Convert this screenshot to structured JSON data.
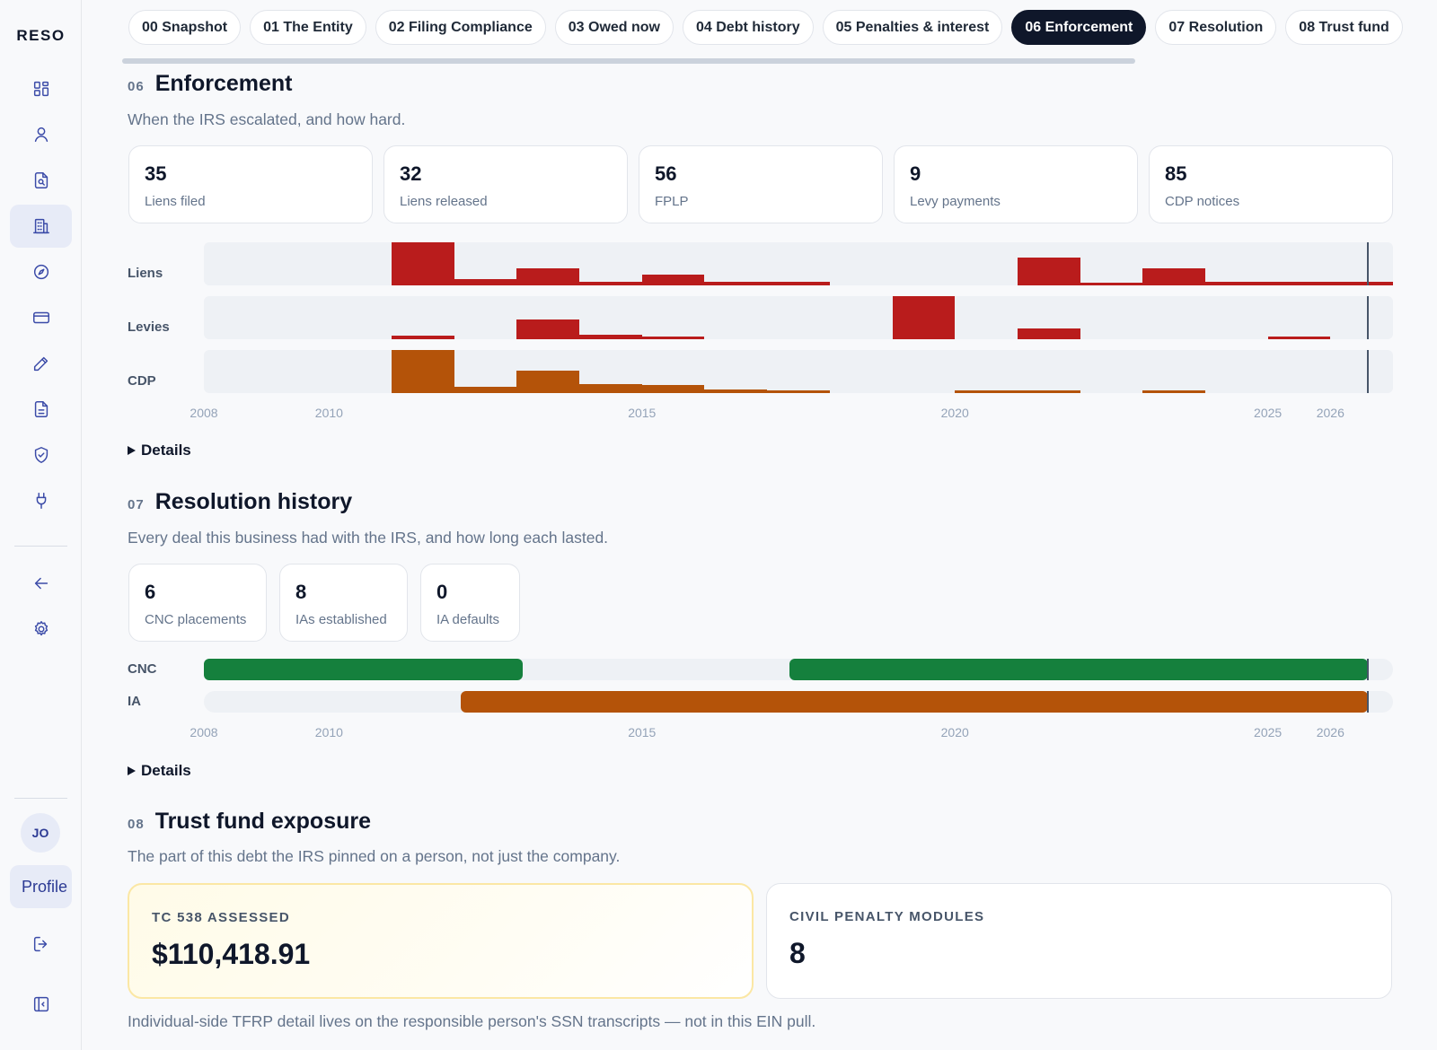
{
  "app": {
    "logo": "RESO"
  },
  "sidebar": {
    "items": [
      {
        "icon": "dashboard-icon"
      },
      {
        "icon": "user-icon"
      },
      {
        "icon": "document-search-icon"
      },
      {
        "icon": "building-icon",
        "active": true
      },
      {
        "icon": "compass-icon"
      },
      {
        "icon": "credit-card-icon"
      },
      {
        "icon": "pencil-icon"
      },
      {
        "icon": "file-text-icon"
      },
      {
        "icon": "shield-check-icon"
      },
      {
        "icon": "plug-icon"
      }
    ],
    "secondary": [
      {
        "icon": "arrow-left-icon"
      },
      {
        "icon": "settings-icon"
      }
    ],
    "avatar_initials": "JO",
    "profile_label": "Profile"
  },
  "tabs": [
    {
      "label": "00 Snapshot"
    },
    {
      "label": "01 The Entity"
    },
    {
      "label": "02 Filing Compliance"
    },
    {
      "label": "03 Owed now"
    },
    {
      "label": "04 Debt history"
    },
    {
      "label": "05 Penalties & interest"
    },
    {
      "label": "06 Enforcement",
      "active": true
    },
    {
      "label": "07 Resolution"
    },
    {
      "label": "08 Trust fund"
    }
  ],
  "enforcement": {
    "num": "06",
    "title": "Enforcement",
    "subtitle": "When the IRS escalated, and how hard.",
    "stats": [
      {
        "value": "35",
        "label": "Liens filed"
      },
      {
        "value": "32",
        "label": "Liens released"
      },
      {
        "value": "56",
        "label": "FPLP"
      },
      {
        "value": "9",
        "label": "Levy payments"
      },
      {
        "value": "85",
        "label": "CDP notices"
      }
    ],
    "details_label": "Details"
  },
  "resolution": {
    "num": "07",
    "title": "Resolution history",
    "subtitle": "Every deal this business had with the IRS, and how long each lasted.",
    "stats": [
      {
        "value": "6",
        "label": "CNC placements"
      },
      {
        "value": "8",
        "label": "IAs established"
      },
      {
        "value": "0",
        "label": "IA defaults"
      }
    ],
    "details_label": "Details"
  },
  "trust_fund": {
    "num": "08",
    "title": "Trust fund exposure",
    "subtitle": "The part of this debt the IRS pinned on a person, not just the company.",
    "cards": [
      {
        "label": "TC 538 ASSESSED",
        "value": "$110,418.91"
      },
      {
        "label": "CIVIL PENALTY MODULES",
        "value": "8"
      }
    ],
    "footnote": "Individual-side TFRP detail lives on the responsible person's SSN transcripts — not in this EIN pull."
  },
  "chart_data": [
    {
      "type": "bar",
      "title": "",
      "x_axis": {
        "min": 2008,
        "max": 2027,
        "ticks": [
          "2008",
          "2010",
          "2015",
          "2020",
          "2025",
          "2026"
        ]
      },
      "now_marker": 2026.6,
      "colors": {
        "Liens": "#b91c1c",
        "Levies": "#b91c1c",
        "CDP": "#b45309"
      },
      "series": [
        {
          "name": "Liens",
          "data": [
            [
              2011,
              1.0
            ],
            [
              2012,
              0.15
            ],
            [
              2013,
              0.4
            ],
            [
              2014,
              0.08
            ],
            [
              2015,
              0.25
            ],
            [
              2016,
              0.08
            ],
            [
              2017,
              0.08
            ],
            [
              2021,
              0.65
            ],
            [
              2022,
              0.05
            ],
            [
              2023,
              0.4
            ],
            [
              2024,
              0.08
            ],
            [
              2025,
              0.08
            ],
            [
              2026,
              0.08
            ]
          ]
        },
        {
          "name": "Levies",
          "data": [
            [
              2011,
              0.08
            ],
            [
              2013,
              0.45
            ],
            [
              2014,
              0.1
            ],
            [
              2015,
              0.06
            ],
            [
              2019,
              1.0
            ],
            [
              2021,
              0.25
            ],
            [
              2025,
              0.06
            ]
          ]
        },
        {
          "name": "CDP",
          "data": [
            [
              2011,
              1.0
            ],
            [
              2012,
              0.15
            ],
            [
              2013,
              0.52
            ],
            [
              2014,
              0.2
            ],
            [
              2015,
              0.18
            ],
            [
              2016,
              0.08
            ],
            [
              2017,
              0.05
            ],
            [
              2020,
              0.05
            ],
            [
              2021,
              0.05
            ],
            [
              2023,
              0.05
            ]
          ]
        }
      ]
    },
    {
      "type": "timeline",
      "title": "",
      "x_axis": {
        "min": 2008,
        "max": 2027,
        "ticks": [
          "2008",
          "2010",
          "2015",
          "2020",
          "2025",
          "2026"
        ]
      },
      "now_marker": 2026.6,
      "colors": {
        "CNC": "#15803d",
        "IA": "#b45309"
      },
      "series": [
        {
          "name": "CNC",
          "spans": [
            [
              2008.0,
              2013.1
            ],
            [
              2017.35,
              2026.6
            ]
          ]
        },
        {
          "name": "IA",
          "spans": [
            [
              2012.1,
              2026.6
            ]
          ]
        }
      ]
    }
  ]
}
